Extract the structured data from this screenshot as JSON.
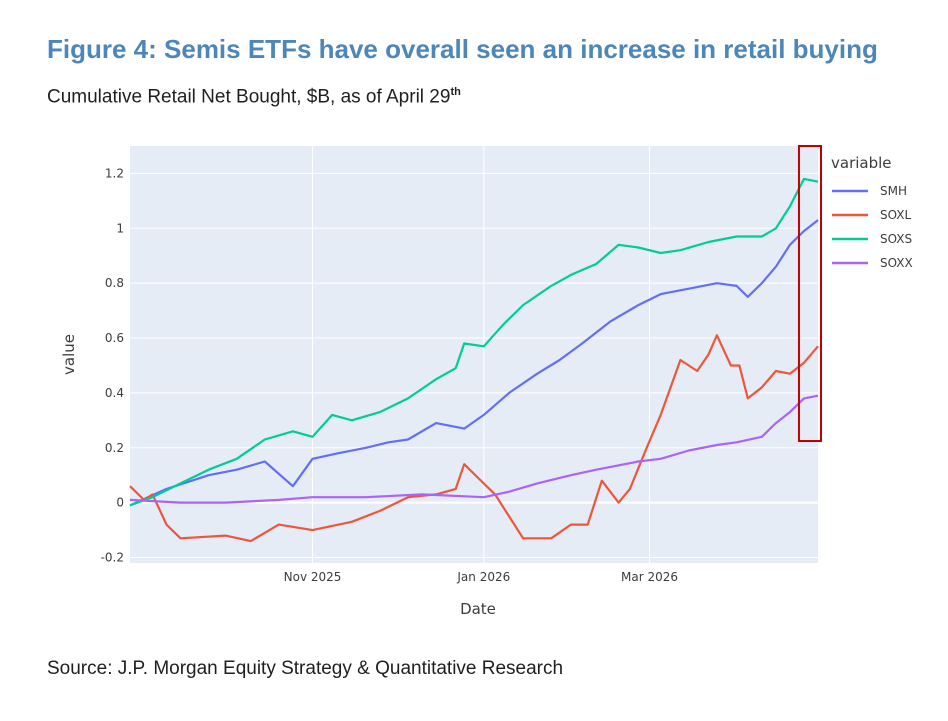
{
  "figure": {
    "title": "Figure 4: Semis ETFs have overall seen an increase in retail buying",
    "subtitle": "Cumulative Retail Net Bought, $B, as of April 29",
    "subtitle_sup": "th",
    "source": "Source: J.P. Morgan Equity Strategy & Quantitative Research"
  },
  "chart_data": {
    "type": "line",
    "title": "",
    "xlabel": "Date",
    "ylabel": "value",
    "xlim": [
      "2025-08-28",
      "2026-04-30"
    ],
    "ylim": [
      -0.22,
      1.3
    ],
    "yticks": [
      -0.2,
      0,
      0.2,
      0.4,
      0.6,
      0.8,
      1,
      1.2
    ],
    "ytick_labels": [
      "-0.2",
      "0",
      "0.2",
      "0.4",
      "0.6",
      "0.8",
      "1",
      "1.2"
    ],
    "xticks": [
      "2025-11-01",
      "2026-01-01",
      "2026-03-01"
    ],
    "xtick_labels": [
      "Nov 2025",
      "Jan 2026",
      "Mar 2026"
    ],
    "grid": true,
    "legend_title": "variable",
    "legend_position": "right",
    "plot_background": "#e5ecf6",
    "highlight": {
      "x_from": "2026-04-25",
      "x_to": "2026-04-30",
      "color": "#c00000"
    },
    "series": [
      {
        "name": "SMH",
        "color": "#636efa",
        "points": [
          [
            "2025-08-28",
            -0.01
          ],
          [
            "2025-09-10",
            0.05
          ],
          [
            "2025-09-25",
            0.1
          ],
          [
            "2025-10-05",
            0.12
          ],
          [
            "2025-10-15",
            0.15
          ],
          [
            "2025-10-25",
            0.06
          ],
          [
            "2025-11-01",
            0.16
          ],
          [
            "2025-11-10",
            0.18
          ],
          [
            "2025-11-20",
            0.2
          ],
          [
            "2025-11-28",
            0.22
          ],
          [
            "2025-12-05",
            0.23
          ],
          [
            "2025-12-15",
            0.29
          ],
          [
            "2025-12-25",
            0.27
          ],
          [
            "2026-01-01",
            0.32
          ],
          [
            "2026-01-10",
            0.4
          ],
          [
            "2026-01-20",
            0.47
          ],
          [
            "2026-01-28",
            0.52
          ],
          [
            "2026-02-05",
            0.58
          ],
          [
            "2026-02-15",
            0.66
          ],
          [
            "2026-02-25",
            0.72
          ],
          [
            "2026-03-05",
            0.76
          ],
          [
            "2026-03-15",
            0.78
          ],
          [
            "2026-03-25",
            0.8
          ],
          [
            "2026-04-01",
            0.79
          ],
          [
            "2026-04-05",
            0.75
          ],
          [
            "2026-04-10",
            0.8
          ],
          [
            "2026-04-15",
            0.86
          ],
          [
            "2026-04-20",
            0.94
          ],
          [
            "2026-04-25",
            0.99
          ],
          [
            "2026-04-30",
            1.03
          ]
        ]
      },
      {
        "name": "SOXL",
        "color": "#ef553b",
        "points": [
          [
            "2025-08-28",
            0.06
          ],
          [
            "2025-09-02",
            0.01
          ],
          [
            "2025-09-05",
            0.03
          ],
          [
            "2025-09-10",
            -0.08
          ],
          [
            "2025-09-15",
            -0.13
          ],
          [
            "2025-10-01",
            -0.12
          ],
          [
            "2025-10-10",
            -0.14
          ],
          [
            "2025-10-20",
            -0.08
          ],
          [
            "2025-11-01",
            -0.1
          ],
          [
            "2025-11-15",
            -0.07
          ],
          [
            "2025-11-25",
            -0.03
          ],
          [
            "2025-12-05",
            0.02
          ],
          [
            "2025-12-15",
            0.03
          ],
          [
            "2025-12-22",
            0.05
          ],
          [
            "2025-12-25",
            0.14
          ],
          [
            "2025-12-30",
            0.09
          ],
          [
            "2026-01-05",
            0.03
          ],
          [
            "2026-01-10",
            -0.05
          ],
          [
            "2026-01-15",
            -0.13
          ],
          [
            "2026-01-25",
            -0.13
          ],
          [
            "2026-02-01",
            -0.08
          ],
          [
            "2026-02-07",
            -0.08
          ],
          [
            "2026-02-12",
            0.08
          ],
          [
            "2026-02-18",
            0.0
          ],
          [
            "2026-02-22",
            0.05
          ],
          [
            "2026-02-28",
            0.2
          ],
          [
            "2026-03-05",
            0.32
          ],
          [
            "2026-03-12",
            0.52
          ],
          [
            "2026-03-18",
            0.48
          ],
          [
            "2026-03-22",
            0.54
          ],
          [
            "2026-03-25",
            0.61
          ],
          [
            "2026-03-30",
            0.5
          ],
          [
            "2026-04-02",
            0.5
          ],
          [
            "2026-04-05",
            0.38
          ],
          [
            "2026-04-10",
            0.42
          ],
          [
            "2026-04-15",
            0.48
          ],
          [
            "2026-04-20",
            0.47
          ],
          [
            "2026-04-25",
            0.51
          ],
          [
            "2026-04-30",
            0.57
          ]
        ]
      },
      {
        "name": "SOXS",
        "color": "#00cc96",
        "points": [
          [
            "2025-08-28",
            -0.01
          ],
          [
            "2025-09-05",
            0.02
          ],
          [
            "2025-09-15",
            0.07
          ],
          [
            "2025-09-25",
            0.12
          ],
          [
            "2025-10-05",
            0.16
          ],
          [
            "2025-10-15",
            0.23
          ],
          [
            "2025-10-25",
            0.26
          ],
          [
            "2025-11-01",
            0.24
          ],
          [
            "2025-11-08",
            0.32
          ],
          [
            "2025-11-15",
            0.3
          ],
          [
            "2025-11-25",
            0.33
          ],
          [
            "2025-12-05",
            0.38
          ],
          [
            "2025-12-15",
            0.45
          ],
          [
            "2025-12-22",
            0.49
          ],
          [
            "2025-12-25",
            0.58
          ],
          [
            "2026-01-01",
            0.57
          ],
          [
            "2026-01-08",
            0.65
          ],
          [
            "2026-01-15",
            0.72
          ],
          [
            "2026-01-25",
            0.79
          ],
          [
            "2026-02-01",
            0.83
          ],
          [
            "2026-02-10",
            0.87
          ],
          [
            "2026-02-18",
            0.94
          ],
          [
            "2026-02-25",
            0.93
          ],
          [
            "2026-03-05",
            0.91
          ],
          [
            "2026-03-12",
            0.92
          ],
          [
            "2026-03-22",
            0.95
          ],
          [
            "2026-04-01",
            0.97
          ],
          [
            "2026-04-10",
            0.97
          ],
          [
            "2026-04-15",
            1.0
          ],
          [
            "2026-04-20",
            1.08
          ],
          [
            "2026-04-25",
            1.18
          ],
          [
            "2026-04-30",
            1.17
          ]
        ]
      },
      {
        "name": "SOXX",
        "color": "#ab63fa",
        "points": [
          [
            "2025-08-28",
            0.01
          ],
          [
            "2025-09-15",
            0.0
          ],
          [
            "2025-10-01",
            0.0
          ],
          [
            "2025-10-20",
            0.01
          ],
          [
            "2025-11-01",
            0.02
          ],
          [
            "2025-11-20",
            0.02
          ],
          [
            "2025-12-10",
            0.03
          ],
          [
            "2026-01-01",
            0.02
          ],
          [
            "2026-01-10",
            0.04
          ],
          [
            "2026-01-20",
            0.07
          ],
          [
            "2026-02-01",
            0.1
          ],
          [
            "2026-02-10",
            0.12
          ],
          [
            "2026-02-25",
            0.15
          ],
          [
            "2026-03-05",
            0.16
          ],
          [
            "2026-03-15",
            0.19
          ],
          [
            "2026-03-25",
            0.21
          ],
          [
            "2026-04-01",
            0.22
          ],
          [
            "2026-04-10",
            0.24
          ],
          [
            "2026-04-15",
            0.29
          ],
          [
            "2026-04-20",
            0.33
          ],
          [
            "2026-04-25",
            0.38
          ],
          [
            "2026-04-30",
            0.39
          ]
        ]
      }
    ]
  }
}
